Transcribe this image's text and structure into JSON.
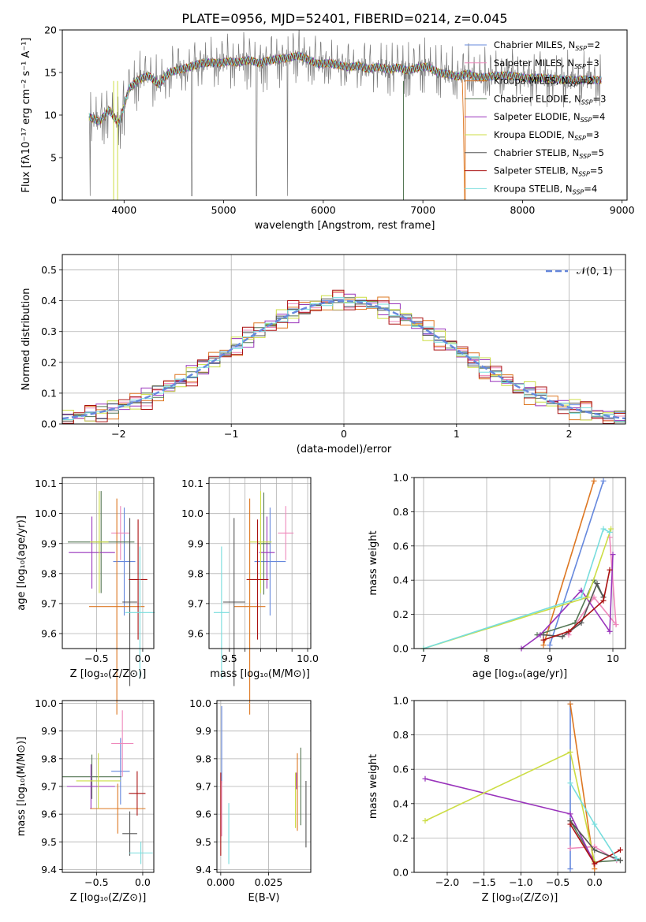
{
  "figure_title": "PLATE=0956, MJD=52401, FIBERID=0214, z=0.045",
  "colors": [
    "#6688dd",
    "#ee88bb",
    "#dd7722",
    "#557755",
    "#9933bb",
    "#ccdd44",
    "#555555",
    "#aa1111",
    "#77dddd"
  ],
  "chart_data": [
    {
      "id": "spectrum",
      "type": "line",
      "title": "PLATE=0956, MJD=52401, FIBERID=0214, z=0.045",
      "xlabel": "wavelength [Angstrom, rest frame]",
      "ylabel": "Flux [fλ10⁻¹⁷ erg cm⁻² s⁻¹ A⁻¹]",
      "xlim": [
        3380,
        9050
      ],
      "ylim": [
        0,
        20
      ],
      "xticks": [
        4000,
        5000,
        6000,
        7000,
        8000,
        9000
      ],
      "yticks": [
        0,
        5,
        10,
        15,
        20
      ],
      "grid": false,
      "legend_position": "top-right",
      "x": [
        3650,
        3750,
        3850,
        3950,
        4050,
        4150,
        4250,
        4350,
        4450,
        4550,
        4650,
        4750,
        4850,
        4950,
        5050,
        5150,
        5250,
        5350,
        5450,
        5550,
        5650,
        5750,
        5850,
        5950,
        6050,
        6150,
        6250,
        6350,
        6450,
        6550,
        6650,
        6750,
        6850,
        6950,
        7050,
        7150,
        7250,
        7350,
        7450,
        7550,
        7650,
        7750,
        7850,
        7950,
        8050,
        8150,
        8250,
        8350,
        8450,
        8550,
        8650,
        8750
      ],
      "series": [
        {
          "name": "Chabrier MILES, N_SSP=2",
          "legend": [
            "Chabrier MILES, N",
            "SSP",
            "=2"
          ]
        },
        {
          "name": "Salpeter MILES, N_SSP=3",
          "legend": [
            "Salpeter MILES, N",
            "SSP",
            "=3"
          ]
        },
        {
          "name": "Kroupa MILES, N_SSP=2",
          "legend": [
            "Kroupa MILES, N",
            "SSP",
            "=2"
          ]
        },
        {
          "name": "Chabrier ELODIE, N_SSP=3",
          "legend": [
            "Chabrier ELODIE, N",
            "SSP",
            "=3"
          ]
        },
        {
          "name": "Salpeter ELODIE, N_SSP=4",
          "legend": [
            "Salpeter ELODIE, N",
            "SSP",
            "=4"
          ]
        },
        {
          "name": "Kroupa ELODIE, N_SSP=3",
          "legend": [
            "Kroupa ELODIE, N",
            "SSP",
            "=3"
          ]
        },
        {
          "name": "Chabrier STELIB, N_SSP=5",
          "legend": [
            "Chabrier STELIB, N",
            "SSP",
            "=5"
          ]
        },
        {
          "name": "Salpeter STELIB, N_SSP=5",
          "legend": [
            "Salpeter STELIB, N",
            "SSP",
            "=5"
          ]
        },
        {
          "name": "Kroupa STELIB, N_SSP=4",
          "legend": [
            "Kroupa STELIB, N",
            "SSP",
            "=4"
          ]
        }
      ],
      "model_flux": [
        9.8,
        9.2,
        10.6,
        9.0,
        13.1,
        14.2,
        14.6,
        13.6,
        15.0,
        15.3,
        15.6,
        16.0,
        16.2,
        16.1,
        16.3,
        16.2,
        16.5,
        16.1,
        16.4,
        16.6,
        16.7,
        17.0,
        16.5,
        16.0,
        16.1,
        15.9,
        15.6,
        15.8,
        15.4,
        15.7,
        15.3,
        15.6,
        15.2,
        15.6,
        15.7,
        15.0,
        14.8,
        14.5,
        14.9,
        14.4,
        14.5,
        14.6,
        14.7,
        14.5,
        14.3,
        14.4,
        14.3,
        14.2,
        14.1,
        14.1,
        14.2,
        14.1
      ],
      "observed_flux": [
        6.0,
        10.5,
        12.0,
        8.5,
        13.8,
        14.9,
        13.9,
        14.4,
        15.8,
        14.2,
        16.4,
        15.6,
        16.9,
        15.4,
        17.2,
        15.5,
        17.3,
        15.6,
        17.1,
        16.9,
        16.2,
        17.5,
        16.3,
        16.6,
        15.7,
        16.5,
        15.3,
        16.4,
        15.0,
        16.2,
        14.9,
        16.1,
        14.8,
        16.0,
        15.2,
        15.5,
        14.5,
        14.7,
        15.3,
        13.8,
        14.9,
        14.2,
        15.0,
        14.0,
        14.7,
        14.0,
        14.6,
        13.9,
        14.3,
        13.8,
        14.4,
        13.9
      ]
    },
    {
      "id": "residuals",
      "type": "line",
      "xlabel": "(data-model)/error",
      "ylabel": "Normed distribution",
      "xlim": [
        -2.5,
        2.5
      ],
      "ylim": [
        0,
        0.55
      ],
      "xticks": [
        -2,
        -1,
        0,
        1,
        2
      ],
      "yticks": [
        0.0,
        0.1,
        0.2,
        0.3,
        0.4,
        0.5
      ],
      "grid": true,
      "legend_position": "top-right",
      "legend": "𝒩(0, 1)",
      "bin_centers": [
        -2.45,
        -2.35,
        -2.25,
        -2.15,
        -2.05,
        -1.95,
        -1.85,
        -1.75,
        -1.65,
        -1.55,
        -1.45,
        -1.35,
        -1.25,
        -1.15,
        -1.05,
        -0.95,
        -0.85,
        -0.75,
        -0.65,
        -0.55,
        -0.45,
        -0.35,
        -0.25,
        -0.15,
        -0.05,
        0.05,
        0.15,
        0.25,
        0.35,
        0.45,
        0.55,
        0.65,
        0.75,
        0.85,
        0.95,
        1.05,
        1.15,
        1.25,
        1.35,
        1.45,
        1.55,
        1.65,
        1.75,
        1.85,
        1.95,
        2.05,
        2.15,
        2.25,
        2.35,
        2.45
      ],
      "series_offsets": [
        0.012,
        -0.02,
        0.03,
        -0.008,
        0.022,
        -0.025,
        0.015,
        -0.03,
        0.005
      ]
    },
    {
      "id": "age-vs-Z",
      "type": "scatter",
      "xlabel": "Z [log₁₀(Z/Z⊙)]",
      "ylabel": "age  [log₁₀(age/yr)]",
      "xlim": [
        -0.87,
        0.12
      ],
      "ylim": [
        9.55,
        10.12
      ],
      "xticks": [
        -0.5,
        0.0
      ],
      "yticks": [
        9.6,
        9.7,
        9.8,
        9.9,
        10.0,
        10.1
      ],
      "grid": true,
      "points": [
        {
          "x": -0.2,
          "y": 9.84,
          "xerr": 0.12,
          "yerr": 0.18
        },
        {
          "x": -0.24,
          "y": 9.935,
          "xerr": 0.1,
          "yerr": 0.09
        },
        {
          "x": -0.28,
          "y": 9.69,
          "xerr": 0.3,
          "yerr": 0.36
        },
        {
          "x": -0.45,
          "y": 9.905,
          "xerr": 0.36,
          "yerr": 0.17
        },
        {
          "x": -0.55,
          "y": 9.87,
          "xerr": 0.25,
          "yerr": 0.12
        },
        {
          "x": -0.47,
          "y": 9.905,
          "xerr": 0.1,
          "yerr": 0.17
        },
        {
          "x": -0.14,
          "y": 9.705,
          "xerr": 0.08,
          "yerr": 0.28
        },
        {
          "x": -0.05,
          "y": 9.78,
          "xerr": 0.1,
          "yerr": 0.2
        },
        {
          "x": -0.03,
          "y": 9.67,
          "xerr": 0.16,
          "yerr": 0.22
        }
      ]
    },
    {
      "id": "age-vs-mass",
      "type": "scatter",
      "xlabel": "mass [log₁₀(M/M⊙)]",
      "ylabel": "",
      "xlim": [
        9.37,
        10.02
      ],
      "ylim": [
        9.55,
        10.12
      ],
      "xticks": [
        9.5,
        9.6,
        9.7,
        9.8,
        9.9,
        10.0
      ],
      "xticklabels": [
        "9.5",
        "",
        "",
        "",
        "",
        "10.0"
      ],
      "yticks": [
        9.6,
        9.7,
        9.8,
        9.9,
        10.0,
        10.1
      ],
      "grid": true,
      "points": [
        {
          "x": 9.76,
          "y": 9.84,
          "xerr": 0.1,
          "yerr": 0.18
        },
        {
          "x": 9.86,
          "y": 9.935,
          "xerr": 0.05,
          "yerr": 0.09
        },
        {
          "x": 9.63,
          "y": 9.69,
          "xerr": 0.1,
          "yerr": 0.36
        },
        {
          "x": 9.72,
          "y": 9.9,
          "xerr": 0.04,
          "yerr": 0.17
        },
        {
          "x": 9.74,
          "y": 9.87,
          "xerr": 0.05,
          "yerr": 0.12
        },
        {
          "x": 9.7,
          "y": 9.905,
          "xerr": 0.07,
          "yerr": 0.17
        },
        {
          "x": 9.53,
          "y": 9.705,
          "xerr": 0.07,
          "yerr": 0.28
        },
        {
          "x": 9.68,
          "y": 9.78,
          "xerr": 0.07,
          "yerr": 0.2
        },
        {
          "x": 9.45,
          "y": 9.67,
          "xerr": 0.05,
          "yerr": 0.22
        }
      ]
    },
    {
      "id": "massweight-vs-age",
      "type": "line",
      "xlabel": "age  [log₁₀(age/yr)]",
      "ylabel": "mass weight",
      "xlim": [
        6.85,
        10.2
      ],
      "ylim": [
        0,
        1
      ],
      "xticks": [
        7,
        8,
        9,
        10
      ],
      "yticks": [
        0.0,
        0.2,
        0.4,
        0.6,
        0.8,
        1.0
      ],
      "grid": true,
      "series": [
        {
          "x": [
            9.0,
            9.85
          ],
          "y": [
            0.02,
            0.98
          ]
        },
        {
          "x": [
            9.3,
            9.7,
            10.05,
            9.95
          ],
          "y": [
            0.08,
            0.3,
            0.14,
            0.65
          ]
        },
        {
          "x": [
            8.9,
            9.7
          ],
          "y": [
            0.02,
            0.98
          ]
        },
        {
          "x": [
            8.8,
            9.4,
            9.7,
            9.85
          ],
          "y": [
            0.08,
            0.15,
            0.4,
            0.3
          ]
        },
        {
          "x": [
            8.55,
            8.85,
            9.5,
            9.95,
            10.0
          ],
          "y": [
            0.0,
            0.08,
            0.34,
            0.1,
            0.55
          ]
        },
        {
          "x": [
            7.0,
            9.6,
            9.97
          ],
          "y": [
            0.0,
            0.3,
            0.7
          ]
        },
        {
          "x": [
            8.9,
            9.2,
            9.5,
            9.75,
            9.85
          ],
          "y": [
            0.08,
            0.07,
            0.15,
            0.38,
            0.3
          ]
        },
        {
          "x": [
            8.9,
            9.3,
            9.85,
            9.95
          ],
          "y": [
            0.05,
            0.1,
            0.28,
            0.46
          ]
        },
        {
          "x": [
            7.0,
            9.5,
            9.85,
            9.95
          ],
          "y": [
            0.0,
            0.3,
            0.7,
            0.68
          ]
        }
      ]
    },
    {
      "id": "mass-vs-Z",
      "type": "scatter",
      "xlabel": "Z [log₁₀(Z/Z⊙)]",
      "ylabel": "mass [log₁₀(M/M⊙)]",
      "xlim": [
        -0.87,
        0.12
      ],
      "ylim": [
        9.39,
        10.01
      ],
      "xticks": [
        -0.5,
        0.0
      ],
      "yticks": [
        9.4,
        9.5,
        9.6,
        9.7,
        9.8,
        9.9,
        10.0
      ],
      "grid": true,
      "points": [
        {
          "x": -0.24,
          "y": 9.755,
          "xerr": 0.1,
          "yerr": 0.12
        },
        {
          "x": -0.22,
          "y": 9.855,
          "xerr": 0.12,
          "yerr": 0.12
        },
        {
          "x": -0.27,
          "y": 9.62,
          "xerr": 0.3,
          "yerr": 0.09
        },
        {
          "x": -0.55,
          "y": 9.735,
          "xerr": 0.32,
          "yerr": 0.08
        },
        {
          "x": -0.56,
          "y": 9.7,
          "xerr": 0.26,
          "yerr": 0.08
        },
        {
          "x": -0.48,
          "y": 9.72,
          "xerr": 0.24,
          "yerr": 0.1
        },
        {
          "x": -0.14,
          "y": 9.53,
          "xerr": 0.08,
          "yerr": 0.08
        },
        {
          "x": -0.06,
          "y": 9.675,
          "xerr": 0.09,
          "yerr": 0.08
        },
        {
          "x": -0.02,
          "y": 9.46,
          "xerr": 0.13,
          "yerr": 0.04
        }
      ]
    },
    {
      "id": "mass-vs-EBV",
      "type": "scatter",
      "xlabel": "E(B-V)",
      "ylabel": "",
      "xlim": [
        -0.002,
        0.047
      ],
      "ylim": [
        9.39,
        10.01
      ],
      "xticks": [
        0.0,
        0.025
      ],
      "xticklabels": [
        "0.000",
        "0.025"
      ],
      "yticks": [
        9.4,
        9.5,
        9.6,
        9.7,
        9.8,
        9.9,
        10.0
      ],
      "grid": true,
      "points": [
        {
          "x": 0.0005,
          "y": 9.85,
          "xerr": 0,
          "yerr": 0.14
        },
        {
          "x": 0.0005,
          "y": 9.62,
          "xerr": 0,
          "yerr": 0.1
        },
        {
          "x": 0.04,
          "y": 9.68,
          "xerr": 0,
          "yerr": 0.14
        },
        {
          "x": 0.0418,
          "y": 9.7,
          "xerr": 0,
          "yerr": 0.14
        },
        {
          "x": 0.0395,
          "y": 9.72,
          "xerr": 0,
          "yerr": 0.03
        },
        {
          "x": 0.039,
          "y": 9.65,
          "xerr": 0,
          "yerr": 0.1
        },
        {
          "x": 0.0445,
          "y": 9.6,
          "xerr": 0,
          "yerr": 0.12
        },
        {
          "x": 0.0,
          "y": 9.6,
          "xerr": 0,
          "yerr": 0.15
        },
        {
          "x": 0.0042,
          "y": 9.53,
          "xerr": 0,
          "yerr": 0.11
        }
      ]
    },
    {
      "id": "massweight-vs-Z",
      "type": "line",
      "xlabel": "Z [log₁₀(Z/Z⊙)]",
      "ylabel": "mass weight",
      "xlim": [
        -2.45,
        0.42
      ],
      "ylim": [
        0,
        1
      ],
      "xticks": [
        -2.0,
        -1.5,
        -1.0,
        -0.5,
        0.0
      ],
      "yticks": [
        0.0,
        0.2,
        0.4,
        0.6,
        0.8,
        1.0
      ],
      "grid": true,
      "series": [
        {
          "x": [
            -0.33,
            -0.33
          ],
          "y": [
            0.02,
            0.98
          ]
        },
        {
          "x": [
            -0.33,
            0.0,
            0.3
          ],
          "y": [
            0.14,
            0.15,
            0.07
          ]
        },
        {
          "x": [
            -0.33,
            0.0
          ],
          "y": [
            0.98,
            0.02
          ]
        },
        {
          "x": [
            -0.33,
            0.0,
            0.35
          ],
          "y": [
            0.3,
            0.06,
            0.07
          ]
        },
        {
          "x": [
            -2.3,
            -0.33,
            0.0
          ],
          "y": [
            0.545,
            0.34,
            0.05
          ]
        },
        {
          "x": [
            -2.3,
            -0.33,
            0.0
          ],
          "y": [
            0.3,
            0.7,
            0.06
          ]
        },
        {
          "x": [
            -0.33,
            0.0,
            0.35
          ],
          "y": [
            0.3,
            0.13,
            0.07
          ]
        },
        {
          "x": [
            -0.33,
            0.0,
            0.35
          ],
          "y": [
            0.28,
            0.05,
            0.13
          ]
        },
        {
          "x": [
            -0.33,
            0.0,
            0.3
          ],
          "y": [
            0.52,
            0.28,
            0.08
          ]
        }
      ]
    }
  ]
}
